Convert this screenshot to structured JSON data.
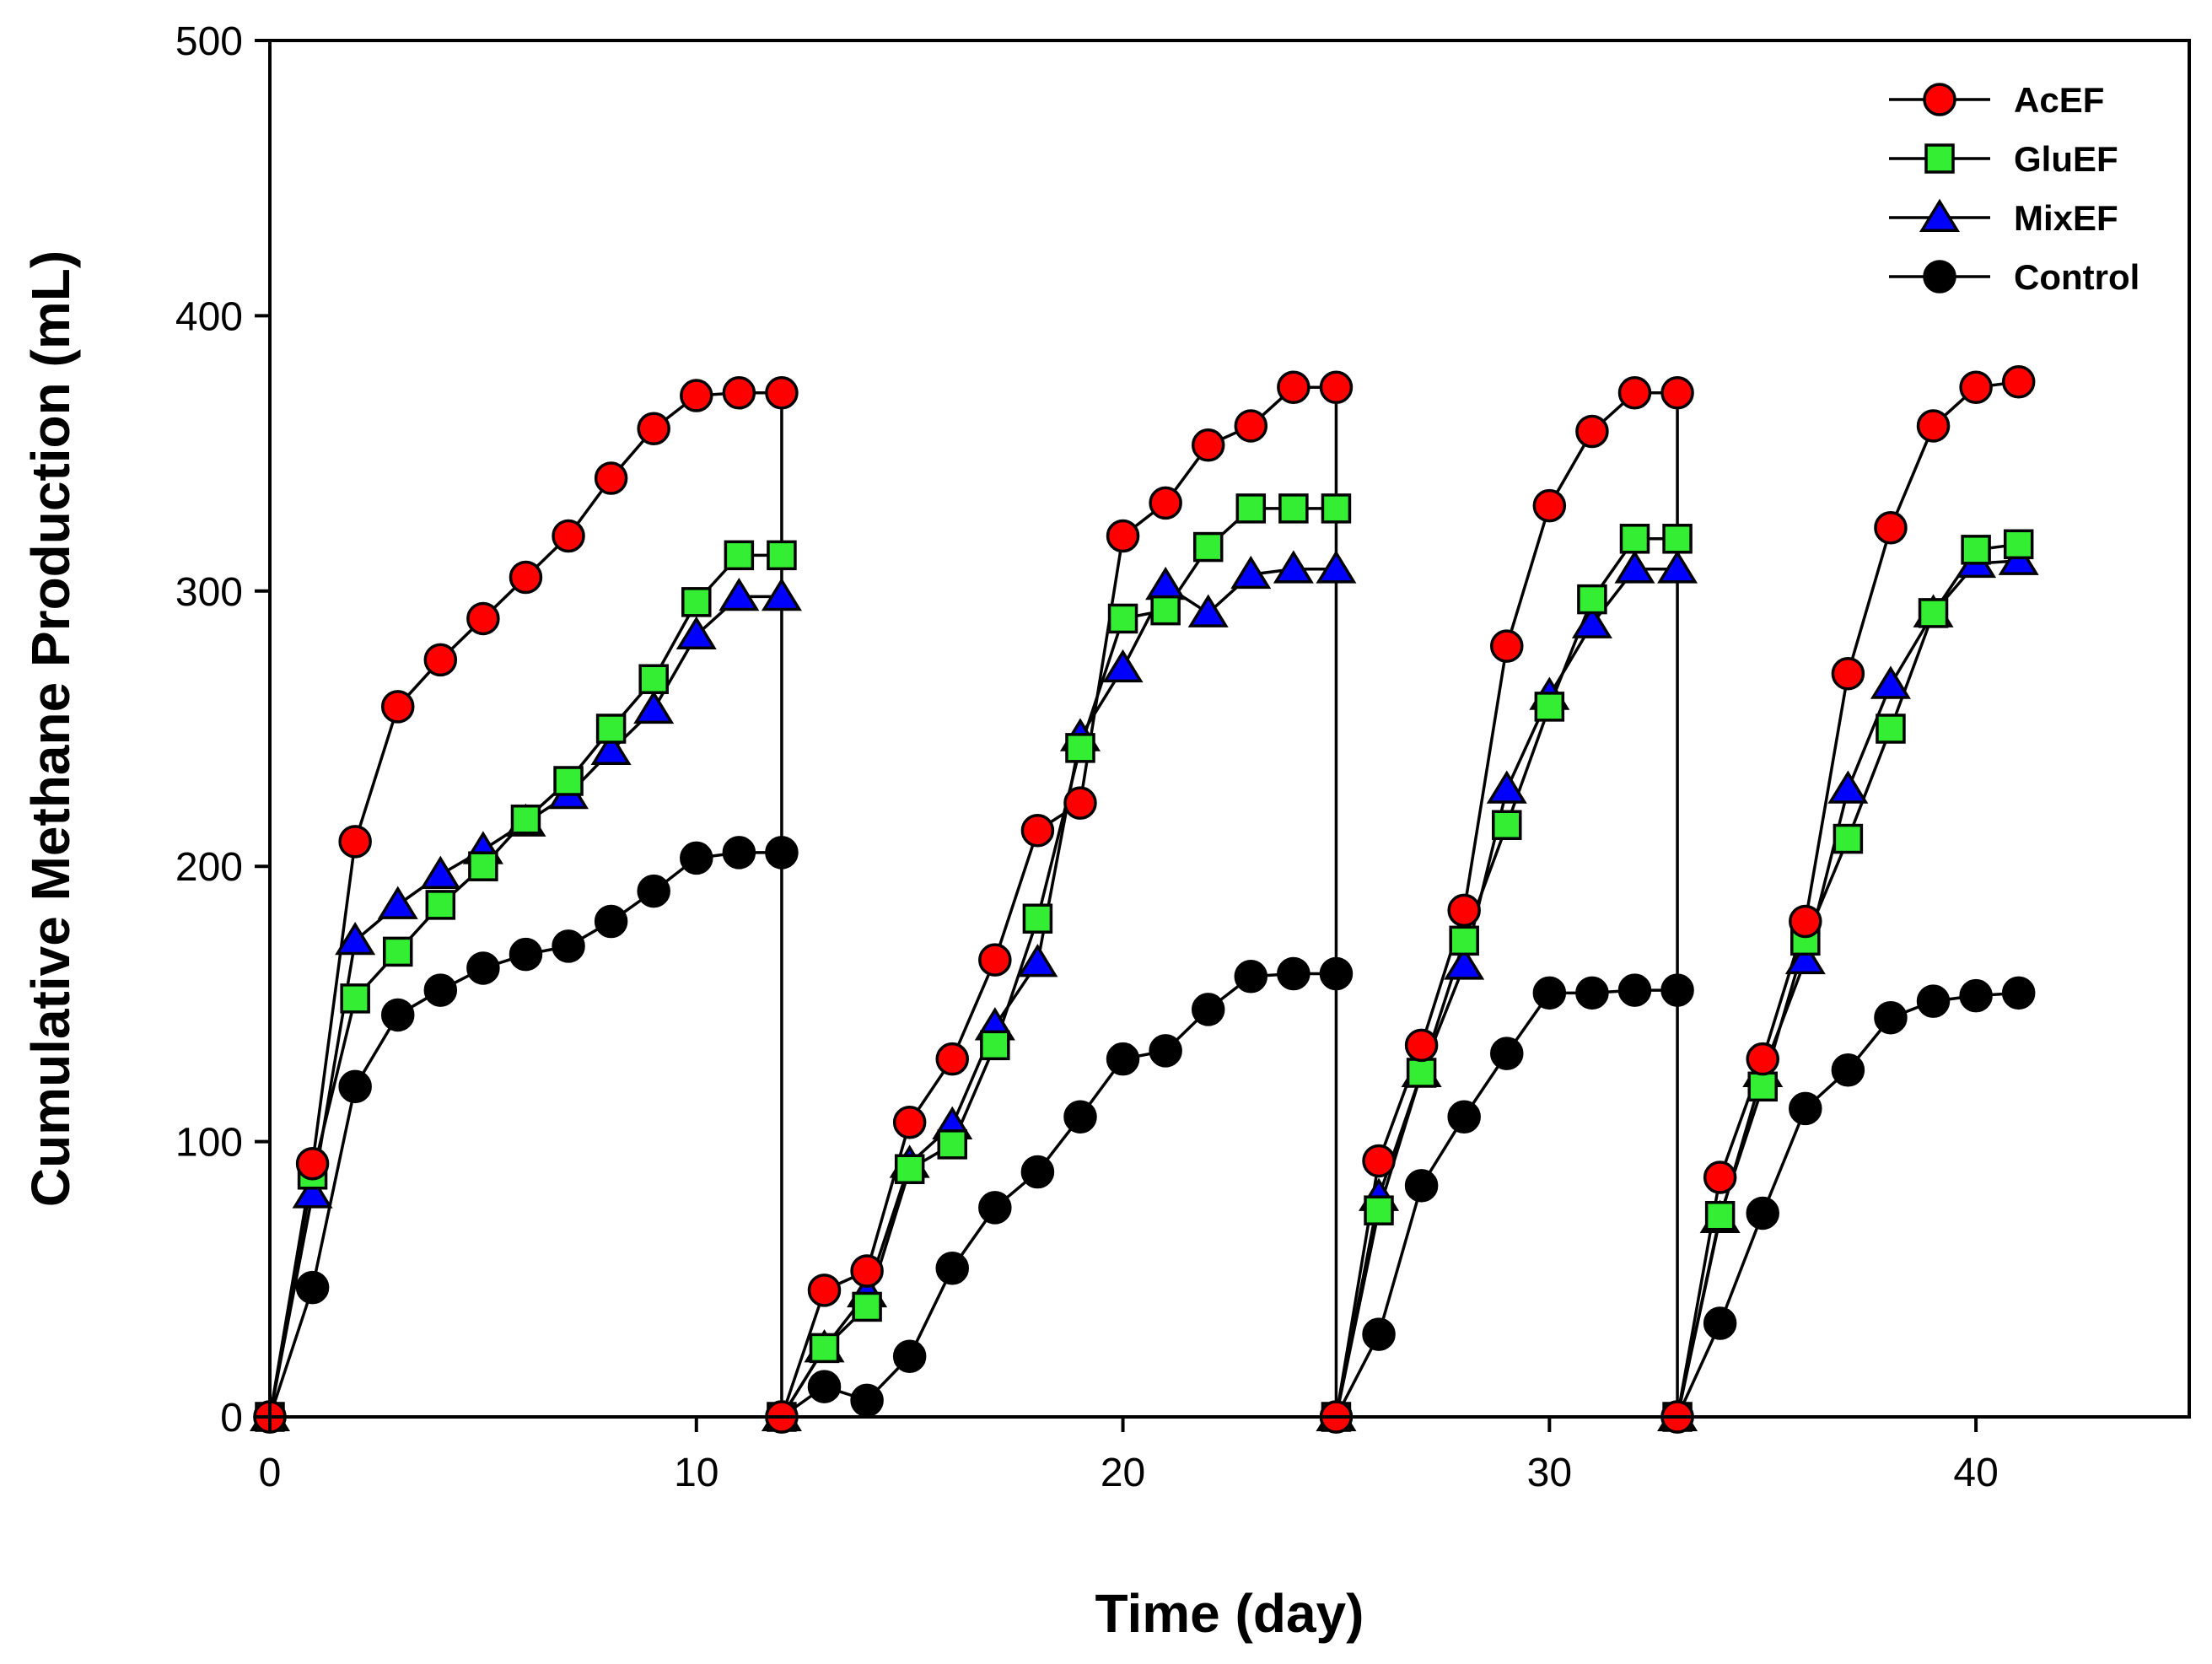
{
  "chart_data": {
    "type": "line",
    "title": "",
    "xlabel": "Time (day)",
    "ylabel": "Cumulative Methane Production (mL)",
    "xlim": [
      0,
      45
    ],
    "ylim": [
      0,
      500
    ],
    "xticks": [
      0,
      10,
      20,
      30,
      40
    ],
    "yticks": [
      0,
      100,
      200,
      300,
      400,
      500
    ],
    "grid": false,
    "legend_position": "top-right",
    "cycles": [
      {
        "x": [
          0,
          1,
          2,
          3,
          4,
          5,
          6,
          7,
          8,
          9,
          10,
          11,
          12
        ]
      },
      {
        "x": [
          12,
          13,
          14,
          15,
          16,
          17,
          18,
          19,
          20,
          21,
          22,
          23,
          24,
          25
        ]
      },
      {
        "x": [
          25,
          26,
          27,
          28,
          29,
          30,
          31,
          32,
          33
        ]
      },
      {
        "x": [
          33,
          34,
          35,
          36,
          37,
          38,
          39,
          40,
          41
        ]
      }
    ],
    "series": [
      {
        "name": "AcEF",
        "color": "#ff0000",
        "marker": "circle",
        "cycles": [
          [
            0,
            92,
            209,
            258,
            275,
            290,
            305,
            320,
            341,
            359,
            371,
            372,
            372
          ],
          [
            0,
            46,
            53,
            107,
            130,
            166,
            213,
            223,
            320,
            332,
            353,
            360,
            374,
            374
          ],
          [
            0,
            93,
            135,
            184,
            280,
            331,
            358,
            372,
            372
          ],
          [
            0,
            87,
            130,
            180,
            270,
            323,
            360,
            374,
            376
          ]
        ]
      },
      {
        "name": "GluEF",
        "color": "#33ee33",
        "marker": "square",
        "cycles": [
          [
            0,
            88,
            152,
            169,
            186,
            200,
            217,
            231,
            250,
            268,
            296,
            313,
            313
          ],
          [
            0,
            25,
            40,
            90,
            99,
            135,
            181,
            243,
            290,
            293,
            316,
            330,
            330,
            330
          ],
          [
            0,
            75,
            125,
            173,
            215,
            258,
            297,
            319,
            319
          ],
          [
            0,
            73,
            120,
            173,
            210,
            250,
            292,
            315,
            317
          ]
        ]
      },
      {
        "name": "MixEF",
        "color": "#0000ff",
        "marker": "triangle",
        "cycles": [
          [
            0,
            81,
            173,
            186,
            197,
            206,
            216,
            226,
            242,
            257,
            284,
            298,
            298
          ],
          [
            0,
            25,
            45,
            92,
            106,
            142,
            165,
            247,
            272,
            302,
            292,
            306,
            308,
            308
          ],
          [
            0,
            80,
            125,
            164,
            228,
            262,
            288,
            308,
            308
          ],
          [
            0,
            72,
            125,
            166,
            228,
            266,
            292,
            310,
            311
          ]
        ]
      },
      {
        "name": "Control",
        "color": "#000000",
        "marker": "circle",
        "cycles": [
          [
            0,
            47,
            120,
            146,
            155,
            163,
            168,
            171,
            180,
            191,
            203,
            205,
            205
          ],
          [
            0,
            11,
            6,
            22,
            54,
            76,
            89,
            109,
            130,
            133,
            148,
            160,
            161,
            161
          ],
          [
            0,
            30,
            84,
            109,
            132,
            154,
            154,
            155,
            155
          ],
          [
            0,
            34,
            74,
            112,
            126,
            145,
            151,
            153,
            154
          ]
        ]
      }
    ]
  }
}
